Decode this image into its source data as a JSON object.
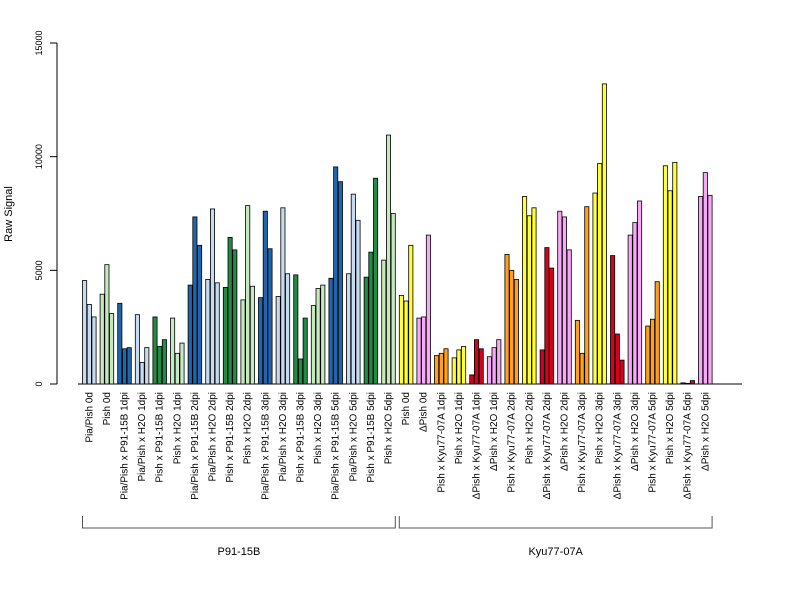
{
  "chart_data": {
    "type": "bar",
    "ylabel": "Raw Signal",
    "ylim": [
      0,
      15000
    ],
    "yticks": [
      0,
      5000,
      10000,
      15000
    ],
    "bars_per_group": 3,
    "groups": [
      {
        "label": "Pia/Pish 0d",
        "values": [
          4550,
          3500,
          2950
        ],
        "color": "#c6dbef"
      },
      {
        "label": "Pish 0d",
        "values": [
          3950,
          5250,
          3100
        ],
        "color": "#c7e9c0"
      },
      {
        "label": "Pia/Pish x P91-15B 1dpi",
        "values": [
          3550,
          1550,
          1600
        ],
        "color": "#2166ac"
      },
      {
        "label": "Pia/Pish x H2O 1dpi",
        "values": [
          3050,
          950,
          1600
        ],
        "color": "#c6dbef"
      },
      {
        "label": "Pish x P91-15B 1dpi",
        "values": [
          2950,
          1650,
          1950
        ],
        "color": "#238b45"
      },
      {
        "label": "Pish x H2O 1dpi",
        "values": [
          2900,
          1350,
          1800
        ],
        "color": "#c7e9c0"
      },
      {
        "label": "Pia/Pish x P91-15B 2dpi",
        "values": [
          4350,
          7350,
          6100
        ],
        "color": "#2166ac"
      },
      {
        "label": "Pia/Pish x H2O 2dpi",
        "values": [
          4600,
          7700,
          4450
        ],
        "color": "#c6dbef"
      },
      {
        "label": "Pish x P91-15B 2dpi",
        "values": [
          4250,
          6450,
          5900
        ],
        "color": "#238b45"
      },
      {
        "label": "Pish x H2O 2dpi",
        "values": [
          3700,
          7850,
          4300
        ],
        "color": "#c7e9c0"
      },
      {
        "label": "Pia/Pish x P91-15B 3dpi",
        "values": [
          3800,
          7600,
          5950
        ],
        "color": "#2166ac"
      },
      {
        "label": "Pia/Pish x H2O 3dpi",
        "values": [
          3850,
          7750,
          4850
        ],
        "color": "#c6dbef"
      },
      {
        "label": "Pish x P91-15B 3dpi",
        "values": [
          4800,
          1100,
          2900
        ],
        "color": "#238b45"
      },
      {
        "label": "Pish x H2O 3dpi",
        "values": [
          3450,
          4200,
          4350
        ],
        "color": "#c7e9c0"
      },
      {
        "label": "Pia/Pish x P91-15B 5dpi",
        "values": [
          4650,
          9550,
          8900
        ],
        "color": "#2166ac"
      },
      {
        "label": "Pia/Pish x H2O 5dpi",
        "values": [
          4850,
          8350,
          7200
        ],
        "color": "#c6dbef"
      },
      {
        "label": "Pish x P91-15B 5dpi",
        "values": [
          4700,
          5800,
          9050
        ],
        "color": "#238b45"
      },
      {
        "label": "Pish x H2O 5dpi",
        "values": [
          5450,
          10950,
          7500
        ],
        "color": "#c7e9c0"
      },
      {
        "label": "Pish 0d",
        "values": [
          3900,
          3650,
          6100
        ],
        "color": "#ffff33"
      },
      {
        "label": "ΔPish 0d",
        "values": [
          2900,
          2950,
          6550
        ],
        "color": "#f7a8f7"
      },
      {
        "label": "Pish x Kyu77-07A 1dpi",
        "values": [
          1250,
          1350,
          1550
        ],
        "color": "#ff9f1c"
      },
      {
        "label": "Pish x H2O 1dpi",
        "values": [
          1150,
          1500,
          1650
        ],
        "color": "#ffff33"
      },
      {
        "label": "ΔPish x Kyu77-07A 1dpi",
        "values": [
          400,
          1950,
          1550
        ],
        "color": "#d7001f"
      },
      {
        "label": "ΔPish x H2O 1dpi",
        "values": [
          1200,
          1600,
          1950
        ],
        "color": "#f7a8f7"
      },
      {
        "label": "Pish x Kyu77-07A 2dpi",
        "values": [
          5700,
          5000,
          4600
        ],
        "color": "#ff9f1c"
      },
      {
        "label": "Pish x H2O 2dpi",
        "values": [
          8250,
          7400,
          7750
        ],
        "color": "#ffff33"
      },
      {
        "label": "ΔPish x Kyu77-07A 2dpi",
        "values": [
          1500,
          6000,
          5100
        ],
        "color": "#d7001f"
      },
      {
        "label": "ΔPish x H2O 2dpi",
        "values": [
          7600,
          7350,
          5900
        ],
        "color": "#f7a8f7"
      },
      {
        "label": "Pish x Kyu77-07A 3dpi",
        "values": [
          2800,
          1350,
          7800
        ],
        "color": "#ff9f1c"
      },
      {
        "label": "Pish x H2O 3dpi",
        "values": [
          8400,
          9700,
          13200
        ],
        "color": "#ffff33"
      },
      {
        "label": "ΔPish x Kyu77-07A 3dpi",
        "values": [
          5650,
          2200,
          1050
        ],
        "color": "#d7001f"
      },
      {
        "label": "ΔPish x H2O 3dpi",
        "values": [
          6550,
          7100,
          8050
        ],
        "color": "#f7a8f7"
      },
      {
        "label": "Pish x Kyu77-07A 5dpi",
        "values": [
          2550,
          2850,
          4500
        ],
        "color": "#ff9f1c"
      },
      {
        "label": "Pish x H2O 5dpi",
        "values": [
          9600,
          8500,
          9750
        ],
        "color": "#ffff33"
      },
      {
        "label": "ΔPish x Kyu77-07A 5dpi",
        "values": [
          50,
          30,
          150
        ],
        "color": "#d7001f"
      },
      {
        "label": "ΔPish x H2O 5dpi",
        "values": [
          8250,
          9300,
          8300
        ],
        "color": "#f7a8f7"
      }
    ],
    "brackets": [
      {
        "label": "P91-15B",
        "from_group": 0,
        "to_group": 17
      },
      {
        "label": "Kyu77-07A",
        "from_group": 18,
        "to_group": 35
      }
    ],
    "grid": false,
    "legend": "none"
  }
}
